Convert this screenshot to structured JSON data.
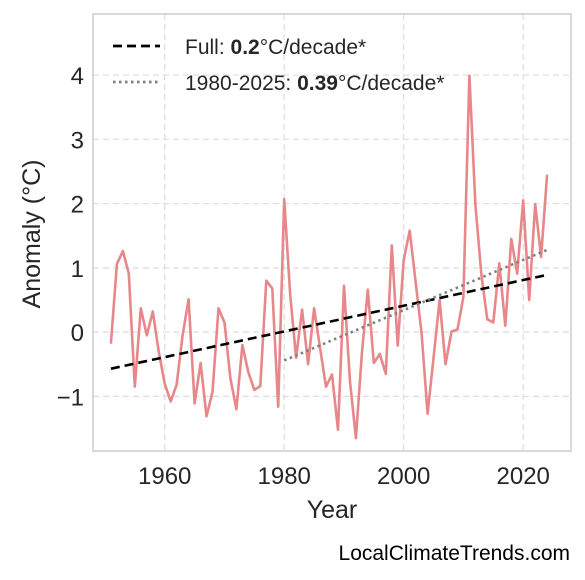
{
  "chart_data": {
    "type": "line",
    "xlabel": "Year",
    "ylabel": "Anomaly (°C)",
    "xlim": [
      1948,
      2028
    ],
    "ylim": [
      -1.85,
      4.95
    ],
    "x_ticks": [
      1960,
      1980,
      2000,
      2020
    ],
    "y_ticks": [
      -1,
      0,
      1,
      2,
      3,
      4
    ],
    "y_tick_labels": [
      "−1",
      "0",
      "1",
      "2",
      "3",
      "4"
    ],
    "grid": true,
    "legend_position": "top-left",
    "series": [
      {
        "style": "solid",
        "color": "#e8878a",
        "x": [
          1951,
          1952,
          1953,
          1954,
          1955,
          1956,
          1957,
          1958,
          1959,
          1960,
          1961,
          1962,
          1963,
          1964,
          1965,
          1966,
          1967,
          1968,
          1969,
          1970,
          1971,
          1972,
          1973,
          1974,
          1975,
          1976,
          1977,
          1978,
          1979,
          1980,
          1981,
          1982,
          1983,
          1984,
          1985,
          1986,
          1987,
          1988,
          1989,
          1990,
          1991,
          1992,
          1993,
          1994,
          1995,
          1996,
          1997,
          1998,
          1999,
          2000,
          2001,
          2002,
          2003,
          2004,
          2005,
          2006,
          2007,
          2008,
          2009,
          2010,
          2011,
          2012,
          2013,
          2014,
          2015,
          2016,
          2017,
          2018,
          2019,
          2020,
          2021,
          2022,
          2023,
          2024
        ],
        "y": [
          -0.18,
          1.06,
          1.26,
          0.91,
          -0.85,
          0.37,
          -0.05,
          0.32,
          -0.3,
          -0.8,
          -1.08,
          -0.82,
          -0.05,
          0.51,
          -1.11,
          -0.48,
          -1.31,
          -0.93,
          0.37,
          0.15,
          -0.72,
          -1.2,
          -0.2,
          -0.62,
          -0.9,
          -0.84,
          0.8,
          0.68,
          -1.16,
          2.07,
          0.58,
          -0.4,
          0.35,
          -0.5,
          0.37,
          -0.24,
          -0.85,
          -0.66,
          -1.52,
          0.72,
          -0.75,
          -1.65,
          -0.33,
          0.66,
          -0.48,
          -0.34,
          -0.65,
          1.35,
          -0.21,
          1.12,
          1.58,
          0.77,
          -0.02,
          -1.27,
          -0.39,
          0.5,
          -0.5,
          0.01,
          0.04,
          0.55,
          3.99,
          1.98,
          0.89,
          0.2,
          0.15,
          1.07,
          0.1,
          1.45,
          0.91,
          2.05,
          0.5,
          1.99,
          1.17,
          2.45
        ]
      },
      {
        "name": "Full",
        "style": "dashed",
        "color": "#000000",
        "x": [
          1951,
          2024
        ],
        "y": [
          -0.57,
          0.89
        ]
      },
      {
        "name": "1980-2025",
        "style": "dotted",
        "color": "#808080",
        "x": [
          1980,
          2024
        ],
        "y": [
          -0.44,
          1.28
        ]
      }
    ]
  },
  "legend": {
    "full": {
      "prefix": "Full: ",
      "value": "0.2",
      "suffix": "°C/decade*"
    },
    "recent": {
      "prefix": "1980-2025: ",
      "value": "0.39",
      "suffix": "°C/decade*"
    }
  },
  "watermark": "LocalClimateTrends.com"
}
